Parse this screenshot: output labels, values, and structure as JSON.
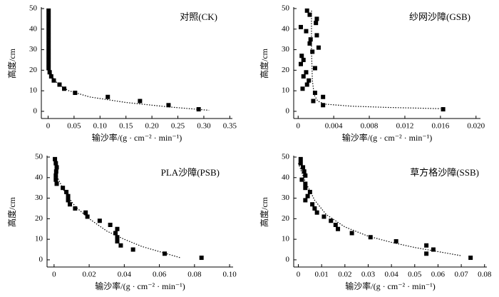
{
  "chart_data": [
    {
      "type": "scatter",
      "title": "对照(CK)",
      "x_label": "输沙率/(g · cm⁻² · min⁻¹)",
      "y_label": "高度/cm",
      "xlim": [
        -0.013,
        0.355
      ],
      "ylim": [
        -3.5,
        50
      ],
      "xticks": [
        0,
        0.05,
        {
          "value": 0.1,
          "label": "0.10"
        },
        0.15,
        {
          "value": 0.2,
          "label": "0.20"
        },
        0.25,
        {
          "value": 0.3,
          "label": "0.30"
        },
        0.35
      ],
      "yticks": [
        0,
        10,
        20,
        30,
        40,
        50
      ],
      "color": "#000000",
      "series": [
        {
          "x": [
            0.001,
            0.001,
            0.001,
            0.001,
            0.001,
            0.001,
            0.001,
            0.001,
            0.001,
            0.001,
            0.001,
            0.001,
            0.001,
            0.001,
            0.001,
            0.003,
            0.006,
            0.011,
            0.022,
            0.031,
            0.052,
            0.115,
            0.177,
            0.232,
            0.29
          ],
          "values": [
            49,
            47,
            45,
            43,
            41,
            39,
            37,
            35,
            33,
            31,
            29,
            27,
            25,
            23,
            21,
            19,
            17,
            15,
            13,
            11,
            9,
            7,
            5,
            3,
            1
          ]
        },
        {
          "line": "dotted",
          "x": [
            0.002,
            0.005,
            0.01,
            0.02,
            0.04,
            0.08,
            0.15,
            0.23,
            0.31
          ],
          "values": [
            22,
            19,
            16,
            13,
            10,
            7,
            4.3,
            2.2,
            0.5
          ]
        }
      ]
    },
    {
      "type": "scatter",
      "title": "纱网沙障(GSB)",
      "x_label": "输沙率/(g · cm⁻² · min⁻¹)",
      "y_label": "高度/cm",
      "xlim": [
        -0.0005,
        0.0205
      ],
      "ylim": [
        -3.5,
        50
      ],
      "xticks": [
        0,
        0.004,
        0.008,
        0.012,
        0.016,
        {
          "value": 0.02,
          "label": "0.020"
        }
      ],
      "yticks": [
        0,
        10,
        20,
        30,
        40,
        50
      ],
      "color": "#000000",
      "series": [
        {
          "x": [
            0.001,
            0.0013,
            0.0021,
            0.002,
            0.0003,
            0.0009,
            0.0021,
            0.0014,
            0.0013,
            0.0023,
            0.0016,
            0.0004,
            0.0006,
            0.0003,
            0.0019,
            0.0009,
            0.0006,
            0.0012,
            0.001,
            0.0005,
            0.0019,
            0.0028,
            0.0017,
            0.0028,
            0.0163
          ],
          "values": [
            49,
            47,
            45,
            43,
            41,
            39,
            37,
            35,
            33,
            31,
            29,
            27,
            25,
            23,
            21,
            19,
            17,
            15,
            13,
            11,
            9,
            7,
            5,
            3,
            1
          ]
        },
        {
          "line": "dotted",
          "x": [
            0.0015,
            0.0015,
            0.0016,
            0.0018,
            0.0022,
            0.003,
            0.006,
            0.01,
            0.016
          ],
          "values": [
            49,
            30,
            15,
            8,
            5,
            3.5,
            2.5,
            1.9,
            1.3
          ]
        }
      ]
    },
    {
      "type": "scatter",
      "title": "PLA沙障(PSB)",
      "x_label": "输沙率/(g · cm⁻² · min⁻¹)",
      "y_label": "高度/cm",
      "xlim": [
        -0.004,
        0.102
      ],
      "ylim": [
        -3.5,
        50
      ],
      "xticks": [
        0,
        0.02,
        0.04,
        0.06,
        0.08,
        {
          "value": 0.1,
          "label": "0.10"
        }
      ],
      "yticks": [
        0,
        10,
        20,
        30,
        40,
        50
      ],
      "color": "#000000",
      "series": [
        {
          "x": [
            0.0005,
            0.001,
            0.0015,
            0.0012,
            0.001,
            0.001,
            0.0015,
            0.005,
            0.007,
            0.008,
            0.008,
            0.009,
            0.012,
            0.018,
            0.019,
            0.026,
            0.032,
            0.036,
            0.035,
            0.036,
            0.036,
            0.038,
            0.045,
            0.063,
            0.084
          ],
          "values": [
            49,
            47,
            45,
            43,
            41,
            39,
            37,
            35,
            33,
            31,
            29,
            27,
            25,
            23,
            21,
            19,
            17,
            15,
            13,
            11,
            9,
            7,
            5,
            3,
            1
          ]
        },
        {
          "line": "dotted",
          "x": [
            0,
            0.002,
            0.006,
            0.012,
            0.02,
            0.03,
            0.04,
            0.05,
            0.06,
            0.072
          ],
          "values": [
            49,
            40,
            33,
            26,
            20,
            14,
            10,
            6.5,
            4,
            1
          ]
        }
      ]
    },
    {
      "type": "scatter",
      "title": "草方格沙障(SSB)",
      "x_label": "输沙率/(g · cm⁻² · min⁻¹)",
      "y_label": "高度/cm",
      "xlim": [
        -0.002,
        0.081
      ],
      "ylim": [
        -3.5,
        50
      ],
      "xticks": [
        0,
        0.01,
        0.02,
        0.03,
        0.04,
        0.05,
        0.06,
        0.07,
        0.08
      ],
      "yticks": [
        0,
        10,
        20,
        30,
        40,
        50
      ],
      "color": "#000000",
      "series": [
        {
          "x": [
            0.001,
            0.001,
            0.002,
            0.0025,
            0.003,
            0.0015,
            0.003,
            0.003,
            0.005,
            0.004,
            0.003,
            0.006,
            0.007,
            0.008,
            0.011,
            0.014,
            0.016,
            0.017,
            0.023,
            0.031,
            0.042,
            0.055,
            0.058,
            0.055,
            0.074
          ],
          "values": [
            49,
            47,
            45,
            43,
            41,
            39,
            37,
            35,
            33,
            31,
            29,
            27,
            25,
            23,
            21,
            19,
            17,
            15,
            13,
            11,
            9,
            7,
            5,
            3,
            1
          ]
        },
        {
          "line": "dotted",
          "x": [
            0,
            0.003,
            0.007,
            0.012,
            0.02,
            0.03,
            0.04,
            0.05,
            0.06,
            0.07
          ],
          "values": [
            47,
            38,
            29,
            22,
            16,
            11.5,
            8.5,
            6,
            4,
            2
          ]
        }
      ]
    }
  ]
}
